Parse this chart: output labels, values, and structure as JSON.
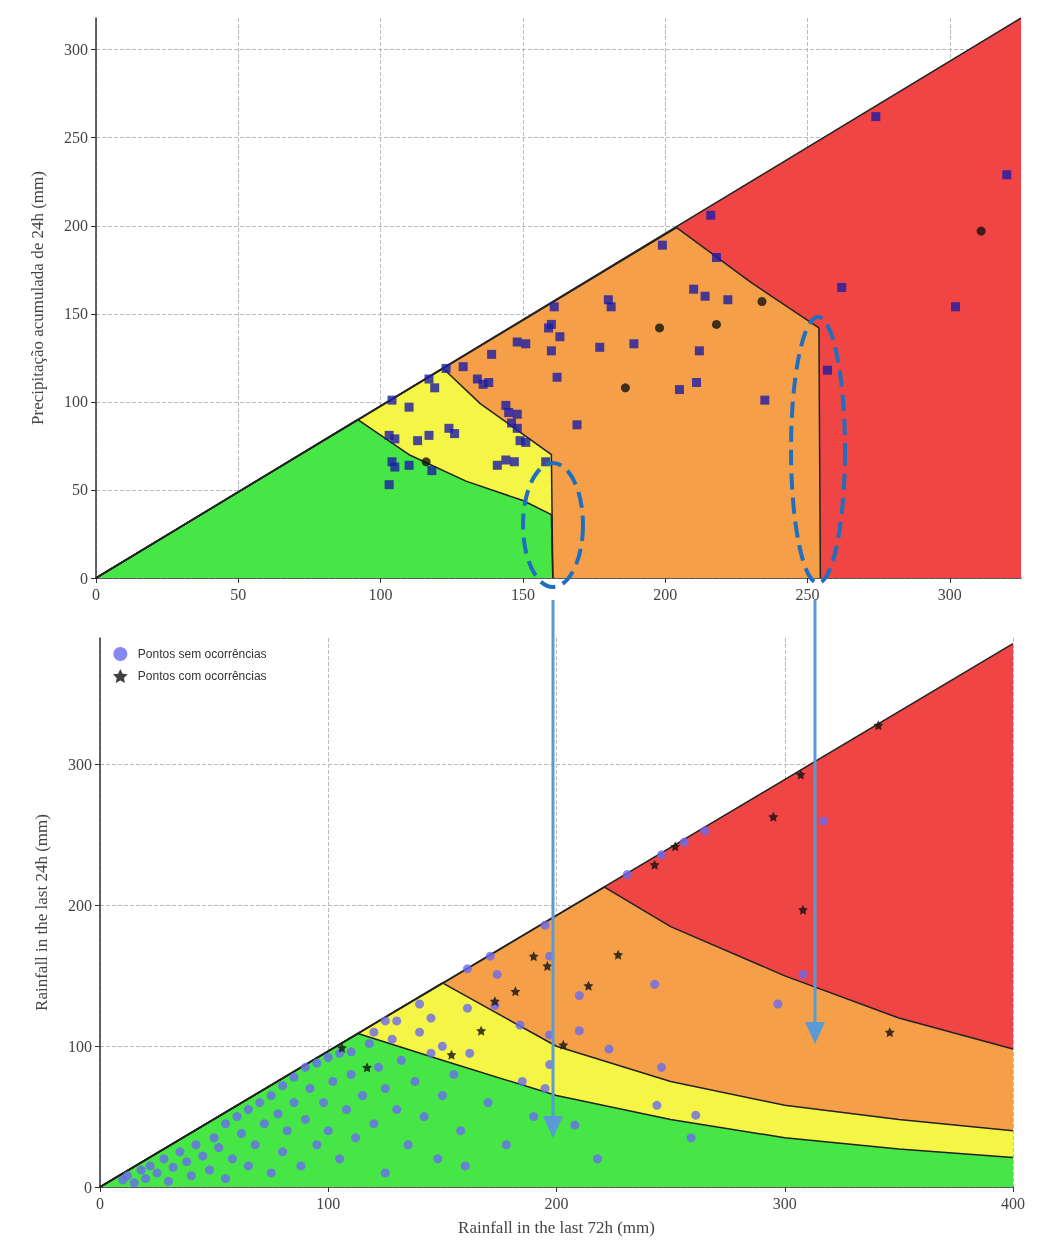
{
  "chart_data": [
    {
      "type": "scatter",
      "ylabel": "Precipitação acumulada de 24h (mm)",
      "xlim": [
        0,
        325
      ],
      "ylim": [
        0,
        318
      ],
      "xticks": [
        0,
        50,
        100,
        150,
        200,
        250,
        300
      ],
      "yticks": [
        0,
        50,
        100,
        150,
        200,
        250,
        300
      ],
      "grid": true,
      "legend": false,
      "series": [
        {
          "type": "area",
          "color": "#f04545",
          "x": [
            0,
            325
          ],
          "values": [
            0,
            318
          ]
        },
        {
          "type": "area",
          "color": "#f5a048",
          "x": [
            0,
            204,
            230,
            254,
            254.5
          ],
          "values": [
            0,
            199,
            168,
            142,
            0
          ]
        },
        {
          "type": "area",
          "color": "#f5f545",
          "x": [
            0,
            122,
            135,
            148,
            160,
            160.5
          ],
          "values": [
            0,
            119,
            99,
            84,
            70,
            0
          ]
        },
        {
          "type": "area",
          "color": "#45e645",
          "x": [
            0,
            92,
            110,
            130,
            150,
            160,
            160.5
          ],
          "values": [
            0,
            90,
            70,
            55,
            44,
            36,
            0
          ]
        },
        {
          "type": "scatter",
          "marker": "square",
          "color": "#1c1ca8",
          "x": [
            103,
            104,
            105,
            103,
            105,
            104,
            110,
            117,
            119,
            123,
            117,
            113,
            110,
            118,
            124,
            126,
            129,
            134,
            136,
            138,
            139,
            144,
            145,
            146,
            148,
            148,
            149,
            151,
            141,
            144,
            147,
            148,
            151,
            159,
            160,
            161,
            160,
            162,
            163,
            158,
            169,
            177,
            180,
            181,
            189,
            199,
            210,
            214,
            212,
            205,
            211,
            216,
            218,
            222,
            235,
            257,
            262,
            274,
            302,
            320
          ],
          "values": [
            53,
            66,
            63,
            81,
            79,
            101,
            97,
            113,
            108,
            119,
            81,
            78,
            64,
            61,
            85,
            82,
            120,
            113,
            110,
            111,
            127,
            98,
            94,
            88,
            85,
            93,
            78,
            77,
            64,
            67,
            66,
            134,
            133,
            142,
            144,
            154,
            129,
            114,
            137,
            66,
            87,
            131,
            158,
            154,
            133,
            189,
            164,
            160,
            129,
            107,
            111,
            206,
            182,
            158,
            101,
            118,
            165,
            262,
            154,
            229
          ]
        },
        {
          "type": "scatter",
          "marker": "circle",
          "color": "#111111",
          "x": [
            116,
            198,
            186,
            218,
            234,
            311
          ],
          "values": [
            66,
            142,
            108,
            144,
            157,
            197
          ]
        }
      ]
    },
    {
      "type": "scatter",
      "xlabel": "Rainfall in the last 72h (mm)",
      "ylabel": "Rainfall in the last 24h (mm)",
      "xlim": [
        0,
        400
      ],
      "ylim": [
        0,
        390
      ],
      "xticks": [
        0,
        100,
        200,
        300,
        400
      ],
      "yticks": [
        0,
        100,
        200,
        300
      ],
      "grid": true,
      "legend": "top left",
      "series": [
        {
          "type": "area",
          "color": "#f04545",
          "x": [
            0,
            400
          ],
          "values": [
            0,
            386
          ]
        },
        {
          "type": "area",
          "color": "#f5a048",
          "x": [
            0,
            221,
            250,
            300,
            350,
            400
          ],
          "values": [
            0,
            213,
            185,
            150,
            120,
            98
          ]
        },
        {
          "type": "area",
          "color": "#f5f545",
          "x": [
            0,
            150,
            200,
            250,
            300,
            350,
            400
          ],
          "values": [
            0,
            145,
            100,
            75,
            58,
            48,
            40
          ]
        },
        {
          "type": "area",
          "color": "#45e645",
          "x": [
            0,
            113,
            150,
            200,
            250,
            300,
            350,
            400
          ],
          "values": [
            0,
            109,
            90,
            65,
            48,
            35,
            27,
            21
          ]
        },
        {
          "type": "scatter",
          "name": "Pontos sem ocorrências",
          "marker": "circle",
          "color": "#6a6af0",
          "x": [
            195,
            171,
            161,
            231,
            246,
            256,
            265,
            317,
            308,
            297,
            243,
            246,
            244,
            261,
            223,
            197,
            197,
            195,
            208,
            218,
            184,
            174,
            161,
            173,
            197,
            210,
            210,
            10,
            12,
            15,
            18,
            20,
            22,
            25,
            28,
            30,
            32,
            35,
            38,
            40,
            42,
            45,
            48,
            50,
            52,
            55,
            55,
            58,
            60,
            62,
            65,
            65,
            68,
            70,
            72,
            75,
            75,
            78,
            80,
            80,
            82,
            85,
            85,
            88,
            90,
            90,
            92,
            95,
            95,
            98,
            100,
            100,
            102,
            105,
            105,
            108,
            110,
            110,
            112,
            115,
            118,
            120,
            122,
            125,
            125,
            128,
            130,
            132,
            135,
            138,
            140,
            142,
            145,
            148,
            150,
            155,
            158,
            140,
            130,
            120,
            160,
            170,
            178,
            185,
            190,
            150,
            162,
            145,
            125,
            259
          ],
          "values": [
            186,
            164,
            155,
            222,
            236,
            245,
            253,
            260,
            151,
            130,
            144,
            85,
            58,
            51,
            98,
            108,
            87,
            70,
            44,
            20,
            115,
            151,
            127,
            129,
            164,
            136,
            111,
            5,
            8,
            3,
            12,
            6,
            15,
            10,
            20,
            4,
            14,
            25,
            18,
            8,
            30,
            22,
            12,
            35,
            28,
            6,
            45,
            20,
            50,
            38,
            15,
            55,
            30,
            60,
            45,
            10,
            65,
            52,
            25,
            72,
            40,
            78,
            60,
            15,
            85,
            48,
            70,
            30,
            88,
            60,
            92,
            40,
            75,
            20,
            95,
            55,
            96,
            80,
            35,
            65,
            102,
            45,
            85,
            10,
            70,
            105,
            55,
            90,
            30,
            75,
            110,
            50,
            95,
            20,
            65,
            80,
            40,
            130,
            118,
            110,
            15,
            60,
            30,
            75,
            50,
            100,
            95,
            120,
            118,
            35
          ]
        },
        {
          "type": "scatter",
          "name": "Pontos com ocorrências",
          "marker": "star",
          "color": "#111111",
          "x": [
            341,
            307,
            295,
            308,
            243,
            252,
            190,
            227,
            214,
            182,
            173,
            196,
            167,
            203,
            154,
            117,
            106,
            346
          ],
          "values": [
            328,
            293,
            263,
            197,
            229,
            242,
            164,
            165,
            143,
            139,
            132,
            157,
            111,
            101,
            94,
            85,
            99,
            110
          ]
        }
      ]
    }
  ]
}
